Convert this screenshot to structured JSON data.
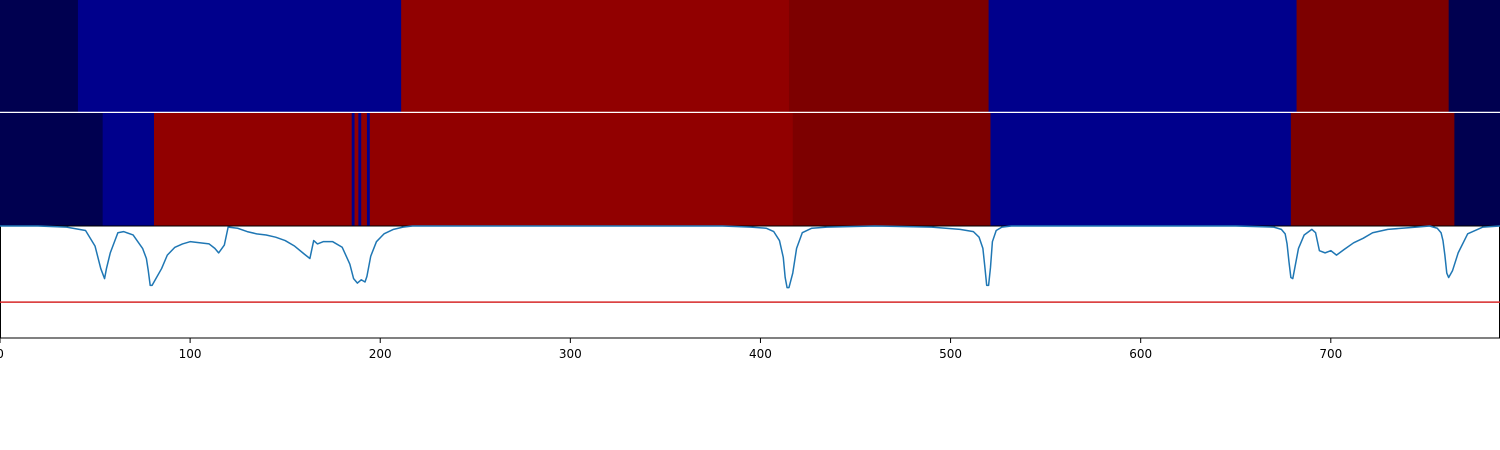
{
  "chart_data": {
    "type": "heatmap",
    "title": "",
    "xlabel": "",
    "ylabel": "",
    "xlim": [
      0,
      789
    ],
    "x_ticks": [
      0,
      100,
      200,
      300,
      400,
      500,
      600,
      700
    ],
    "x_tick_labels": [
      "0",
      "100",
      "200",
      "300",
      "400",
      "500",
      "600",
      "700"
    ],
    "palette": {
      "0": "#000050",
      "1": "#00008c",
      "2": "#910000",
      "3": "#7d0000"
    },
    "tracks": [
      {
        "segments": [
          {
            "start": 0,
            "end": 41,
            "class": 0
          },
          {
            "start": 41,
            "end": 211,
            "class": 1
          },
          {
            "start": 211,
            "end": 415,
            "class": 2
          },
          {
            "start": 415,
            "end": 520,
            "class": 3
          },
          {
            "start": 520,
            "end": 682,
            "class": 1
          },
          {
            "start": 682,
            "end": 762,
            "class": 3
          },
          {
            "start": 762,
            "end": 789,
            "class": 0
          }
        ]
      },
      {
        "segments": [
          {
            "start": 0,
            "end": 54,
            "class": 0
          },
          {
            "start": 54,
            "end": 81,
            "class": 1
          },
          {
            "start": 81,
            "end": 185,
            "class": 2
          },
          {
            "start": 185,
            "end": 186.5,
            "class": 1
          },
          {
            "start": 186.5,
            "end": 188.5,
            "class": 2
          },
          {
            "start": 188.5,
            "end": 190,
            "class": 1
          },
          {
            "start": 190,
            "end": 193,
            "class": 2
          },
          {
            "start": 193,
            "end": 194.5,
            "class": 1
          },
          {
            "start": 194.5,
            "end": 417,
            "class": 2
          },
          {
            "start": 417,
            "end": 521,
            "class": 3
          },
          {
            "start": 521,
            "end": 679,
            "class": 1
          },
          {
            "start": 679,
            "end": 765,
            "class": 3
          },
          {
            "start": 765,
            "end": 789,
            "class": 0
          }
        ]
      }
    ],
    "line_panel": {
      "ylim": [
        0,
        1
      ],
      "threshold": 0.32,
      "threshold_color": "#d62728",
      "line_color": "#1f77b4",
      "series": {
        "x": [
          0,
          20,
          35,
          45,
          50,
          53,
          55,
          56,
          58,
          62,
          65,
          70,
          75,
          77,
          78,
          79,
          80,
          82,
          85,
          88,
          92,
          96,
          100,
          105,
          110,
          113,
          115,
          118,
          120,
          125,
          130,
          135,
          140,
          145,
          150,
          155,
          160,
          163,
          165,
          167,
          170,
          175,
          180,
          184,
          186,
          188,
          190,
          192,
          193,
          195,
          198,
          202,
          207,
          212,
          217,
          230,
          260,
          300,
          340,
          380,
          395,
          403,
          407,
          410,
          412,
          413,
          414,
          415,
          417,
          419,
          422,
          427,
          435,
          460,
          490,
          505,
          512,
          515,
          517,
          518,
          519,
          520,
          521,
          522,
          524,
          527,
          532,
          550,
          600,
          650,
          670,
          674,
          676,
          677,
          678,
          679,
          680,
          681,
          683,
          686,
          690,
          692,
          694,
          697,
          700,
          703,
          707,
          712,
          717,
          722,
          730,
          745,
          752,
          756,
          758,
          759,
          760,
          761,
          762,
          764,
          767,
          772,
          780,
          789
        ],
        "y": [
          1.0,
          1.0,
          0.99,
          0.96,
          0.82,
          0.62,
          0.53,
          0.62,
          0.76,
          0.94,
          0.95,
          0.92,
          0.8,
          0.71,
          0.6,
          0.47,
          0.47,
          0.53,
          0.62,
          0.74,
          0.81,
          0.84,
          0.86,
          0.85,
          0.84,
          0.8,
          0.76,
          0.83,
          0.99,
          0.98,
          0.95,
          0.93,
          0.92,
          0.9,
          0.87,
          0.82,
          0.75,
          0.71,
          0.87,
          0.84,
          0.86,
          0.86,
          0.81,
          0.66,
          0.53,
          0.49,
          0.52,
          0.5,
          0.55,
          0.73,
          0.86,
          0.93,
          0.97,
          0.99,
          1.0,
          1.0,
          1.0,
          1.0,
          1.0,
          1.0,
          0.99,
          0.98,
          0.95,
          0.87,
          0.72,
          0.54,
          0.45,
          0.45,
          0.58,
          0.8,
          0.94,
          0.98,
          0.99,
          1.0,
          0.99,
          0.97,
          0.95,
          0.9,
          0.8,
          0.64,
          0.47,
          0.47,
          0.63,
          0.86,
          0.96,
          0.99,
          1.0,
          1.0,
          1.0,
          1.0,
          0.99,
          0.97,
          0.93,
          0.84,
          0.68,
          0.54,
          0.53,
          0.62,
          0.8,
          0.92,
          0.97,
          0.94,
          0.78,
          0.76,
          0.78,
          0.74,
          0.79,
          0.85,
          0.89,
          0.94,
          0.97,
          0.99,
          1.0,
          0.98,
          0.94,
          0.87,
          0.74,
          0.58,
          0.54,
          0.6,
          0.76,
          0.93,
          0.99,
          1.0
        ]
      }
    }
  }
}
